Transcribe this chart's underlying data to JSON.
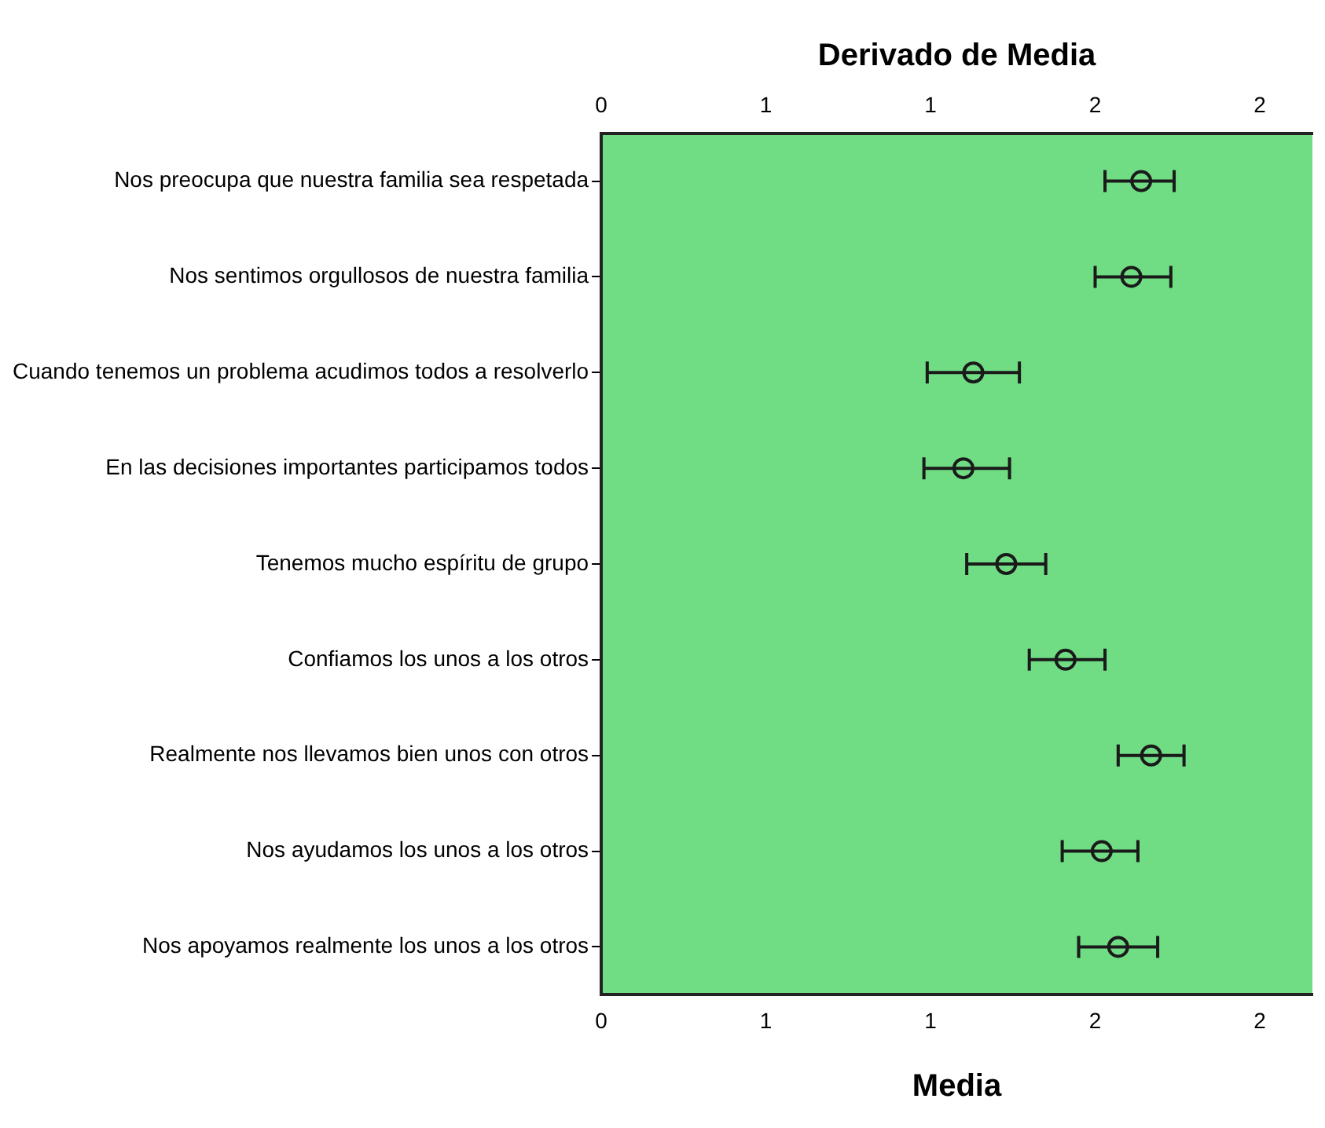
{
  "chart_data": {
    "type": "scatter",
    "xlabel": "Media",
    "x2label": "Derivado de Media",
    "categories": [
      "Nos preocupa que nuestra familia sea respetada",
      "Nos sentimos orgullosos de nuestra familia",
      "Cuando tenemos un problema acudimos todos a resolverlo",
      "En las decisiones importantes participamos todos",
      "Tenemos mucho espíritu de grupo",
      "Confiamos los unos a los otros",
      "Realmente nos llevamos bien unos con otros",
      "Nos ayudamos los unos a los otros",
      "Nos apoyamos realmente los unos a los otros"
    ],
    "series": [
      {
        "color": "#1a1a1a",
        "values": [
          1.64,
          1.61,
          1.13,
          1.1,
          1.23,
          1.41,
          1.67,
          1.52,
          1.57
        ],
        "errors": [
          [
            1.53,
            1.74
          ],
          [
            1.5,
            1.73
          ],
          [
            0.99,
            1.27
          ],
          [
            0.98,
            1.24
          ],
          [
            1.11,
            1.35
          ],
          [
            1.3,
            1.53
          ],
          [
            1.57,
            1.77
          ],
          [
            1.4,
            1.63
          ],
          [
            1.45,
            1.69
          ]
        ]
      }
    ],
    "orientation": "horizontal",
    "xlim": [
      0,
      2.16
    ],
    "xticks": [
      0,
      {
        "value": 0.5,
        "label": "1"
      },
      {
        "value": 1,
        "label": "1"
      },
      {
        "value": 1.5,
        "label": "2"
      },
      {
        "value": 2,
        "label": "2"
      }
    ],
    "x2lim": [
      0,
      2.16
    ],
    "x2ticks": [
      0,
      {
        "value": 0.5,
        "label": "1"
      },
      {
        "value": 1,
        "label": "1"
      },
      {
        "value": 1.5,
        "label": "2"
      },
      {
        "value": 2,
        "label": "2"
      }
    ],
    "marker": "circle",
    "grid": false,
    "legend": false
  }
}
